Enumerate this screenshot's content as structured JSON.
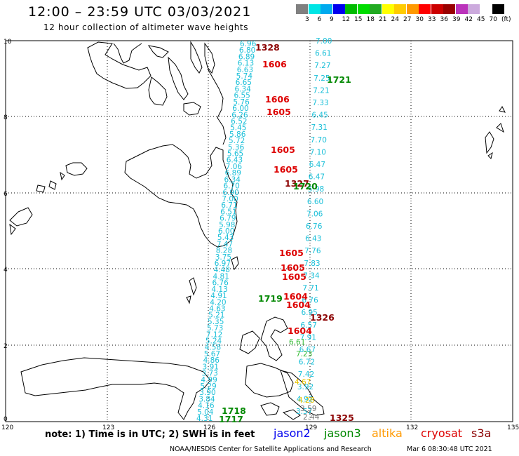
{
  "header": {
    "title": "12:00 – 23:59 UTC 03/03/2021",
    "subtitle": "12 hour collection of altimeter wave heights"
  },
  "colorbar": {
    "colors": [
      "#808080",
      "#00e5e5",
      "#00aaee",
      "#0000ee",
      "#00bb00",
      "#00dd00",
      "#22aa22",
      "#ffff00",
      "#ffcc00",
      "#ff9900",
      "#ff0000",
      "#cc0000",
      "#990000",
      "#bb33bb",
      "#ccaadd",
      "#ffffff",
      "#000000"
    ],
    "labels": [
      "3",
      "6",
      "9",
      "12",
      "15",
      "18",
      "21",
      "24",
      "27",
      "30",
      "33",
      "36",
      "39",
      "42",
      "45",
      "70",
      "(ft)"
    ]
  },
  "axes": {
    "lat_labels": [
      "10",
      "8",
      "6",
      "4",
      "2",
      "0"
    ],
    "lon_labels": [
      "120",
      "123",
      "126",
      "129",
      "132",
      "135"
    ]
  },
  "tracks": {
    "cyan_left": [
      "6.96",
      "6.80",
      "6.89",
      "6.13",
      "6.63",
      "5.74",
      "6.65",
      "6.34",
      "6.55",
      "5.76",
      "6.00",
      "6.26",
      "6.52",
      "5.45",
      "5.86",
      "5.72",
      "5.36",
      "5.65",
      "6.43",
      "7.06",
      "6.89",
      "6.34",
      "6.70",
      "6.90",
      "7.00",
      "6.71",
      "6.51",
      "6.79",
      "5.98",
      "6.00",
      "5.43",
      "7.47",
      "8.28",
      "3.75",
      "6.97",
      "4.48",
      "4.81",
      "6.76",
      "4.13",
      "4.91",
      "4.20",
      "4.63",
      "5.21",
      "5.35",
      "5.73",
      "7.12",
      "5.24",
      "4.58",
      "5.67",
      "4.86",
      "3.91",
      "3.73",
      "4.99",
      "5.29",
      "3.90",
      "3.84",
      "4.16",
      "5.04",
      "4.31"
    ],
    "cyan_right": [
      "7.00",
      "6.61",
      "7.27",
      "7.25",
      "7.21",
      "7.33",
      "6.45",
      "7.31",
      "7.70",
      "7.10",
      "6.47",
      "6.47",
      "5.98",
      "6.60",
      "7.06",
      "6.76",
      "6.43",
      "7.76",
      "7.83",
      "7.34",
      "7.71",
      "6.76",
      "6.95",
      "6.57",
      "7.91",
      "6.67",
      "6.72",
      "7.42",
      "3.92",
      "4.92",
      "3.57"
    ],
    "green": [
      "6.61",
      "7.23"
    ],
    "yellow": [
      "4.67",
      "4.28"
    ],
    "grey": [
      "3.59",
      "2.44"
    ],
    "times": [
      {
        "t": "1328",
        "c": "#8b0000"
      },
      {
        "t": "1606",
        "c": "#dd0000"
      },
      {
        "t": "1721",
        "c": "#008800"
      },
      {
        "t": "1606",
        "c": "#dd0000"
      },
      {
        "t": "1605",
        "c": "#dd0000"
      },
      {
        "t": "1605",
        "c": "#dd0000"
      },
      {
        "t": "1605",
        "c": "#dd0000"
      },
      {
        "t": "1327",
        "c": "#8b0000"
      },
      {
        "t": "1720",
        "c": "#008800"
      },
      {
        "t": "1605",
        "c": "#dd0000"
      },
      {
        "t": "1605",
        "c": "#dd0000"
      },
      {
        "t": "1605",
        "c": "#dd0000"
      },
      {
        "t": "1719",
        "c": "#008800"
      },
      {
        "t": "1604",
        "c": "#dd0000"
      },
      {
        "t": "1604",
        "c": "#dd0000"
      },
      {
        "t": "1326",
        "c": "#8b0000"
      },
      {
        "t": "1604",
        "c": "#dd0000"
      },
      {
        "t": "1718",
        "c": "#008800"
      },
      {
        "t": "1717",
        "c": "#008800"
      },
      {
        "t": "1325",
        "c": "#8b0000"
      }
    ]
  },
  "footer": {
    "note": "note:  1) Time is in UTC;  2) SWH is in feet",
    "legend": [
      {
        "label": "jason2",
        "color": "#0000ee"
      },
      {
        "label": "jason3",
        "color": "#008800"
      },
      {
        "label": "altika",
        "color": "#ff9900"
      },
      {
        "label": "cryosat",
        "color": "#dd0000"
      },
      {
        "label": "s3a",
        "color": "#8b0000"
      }
    ],
    "credit": "NOAA/NESDIS Center for Satellite Applications and Research",
    "date": "Mar  6 08:30:48 UTC 2021"
  }
}
